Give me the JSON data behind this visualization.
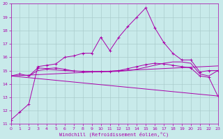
{
  "xlabel": "Windchill (Refroidissement éolien,°C)",
  "bg_color": "#c8eaea",
  "grid_color": "#aacccc",
  "line_color": "#aa00aa",
  "ylim": [
    11,
    20
  ],
  "xlim": [
    0,
    23
  ],
  "yticks": [
    11,
    12,
    13,
    14,
    15,
    16,
    17,
    18,
    19,
    20
  ],
  "xticks": [
    0,
    1,
    2,
    3,
    4,
    5,
    6,
    7,
    8,
    9,
    10,
    11,
    12,
    13,
    14,
    15,
    16,
    17,
    18,
    19,
    20,
    21,
    22,
    23
  ],
  "line1_x": [
    0,
    1,
    2,
    3,
    4,
    5,
    6,
    7,
    8,
    9,
    10,
    11,
    12,
    13,
    14,
    15,
    16,
    17,
    18,
    19,
    20,
    21,
    22,
    23
  ],
  "line1_y": [
    11.3,
    11.9,
    12.5,
    15.3,
    15.4,
    15.5,
    16.0,
    16.1,
    16.3,
    16.3,
    17.5,
    16.5,
    17.5,
    18.3,
    19.0,
    19.7,
    18.2,
    17.1,
    16.3,
    15.8,
    15.8,
    14.9,
    15.0,
    15.0
  ],
  "line2_x": [
    2,
    3,
    4,
    5,
    6,
    7,
    8,
    9,
    10,
    11,
    12,
    13,
    14,
    15,
    16,
    17,
    18,
    19,
    20,
    21,
    22,
    23
  ],
  "line2_y": [
    14.6,
    15.0,
    15.1,
    15.05,
    15.0,
    14.97,
    14.95,
    14.93,
    14.92,
    14.92,
    14.95,
    15.0,
    15.1,
    15.25,
    15.4,
    15.55,
    15.65,
    15.65,
    15.55,
    14.75,
    14.6,
    15.0
  ],
  "line3_x": [
    0,
    1,
    2,
    3,
    4,
    5,
    6,
    7,
    8,
    9,
    10,
    11,
    12,
    13,
    14,
    15,
    16,
    17,
    18,
    19,
    20,
    21,
    22,
    23
  ],
  "line3_y": [
    14.6,
    14.75,
    14.6,
    15.2,
    15.15,
    15.2,
    15.1,
    14.97,
    14.93,
    14.92,
    14.93,
    14.95,
    15.0,
    15.15,
    15.3,
    15.45,
    15.55,
    15.5,
    15.4,
    15.3,
    15.2,
    14.6,
    14.5,
    13.1
  ],
  "line4_x": [
    0,
    23
  ],
  "line4_y": [
    14.6,
    13.1
  ],
  "line5_x": [
    0,
    23
  ],
  "line5_y": [
    14.6,
    15.35
  ]
}
